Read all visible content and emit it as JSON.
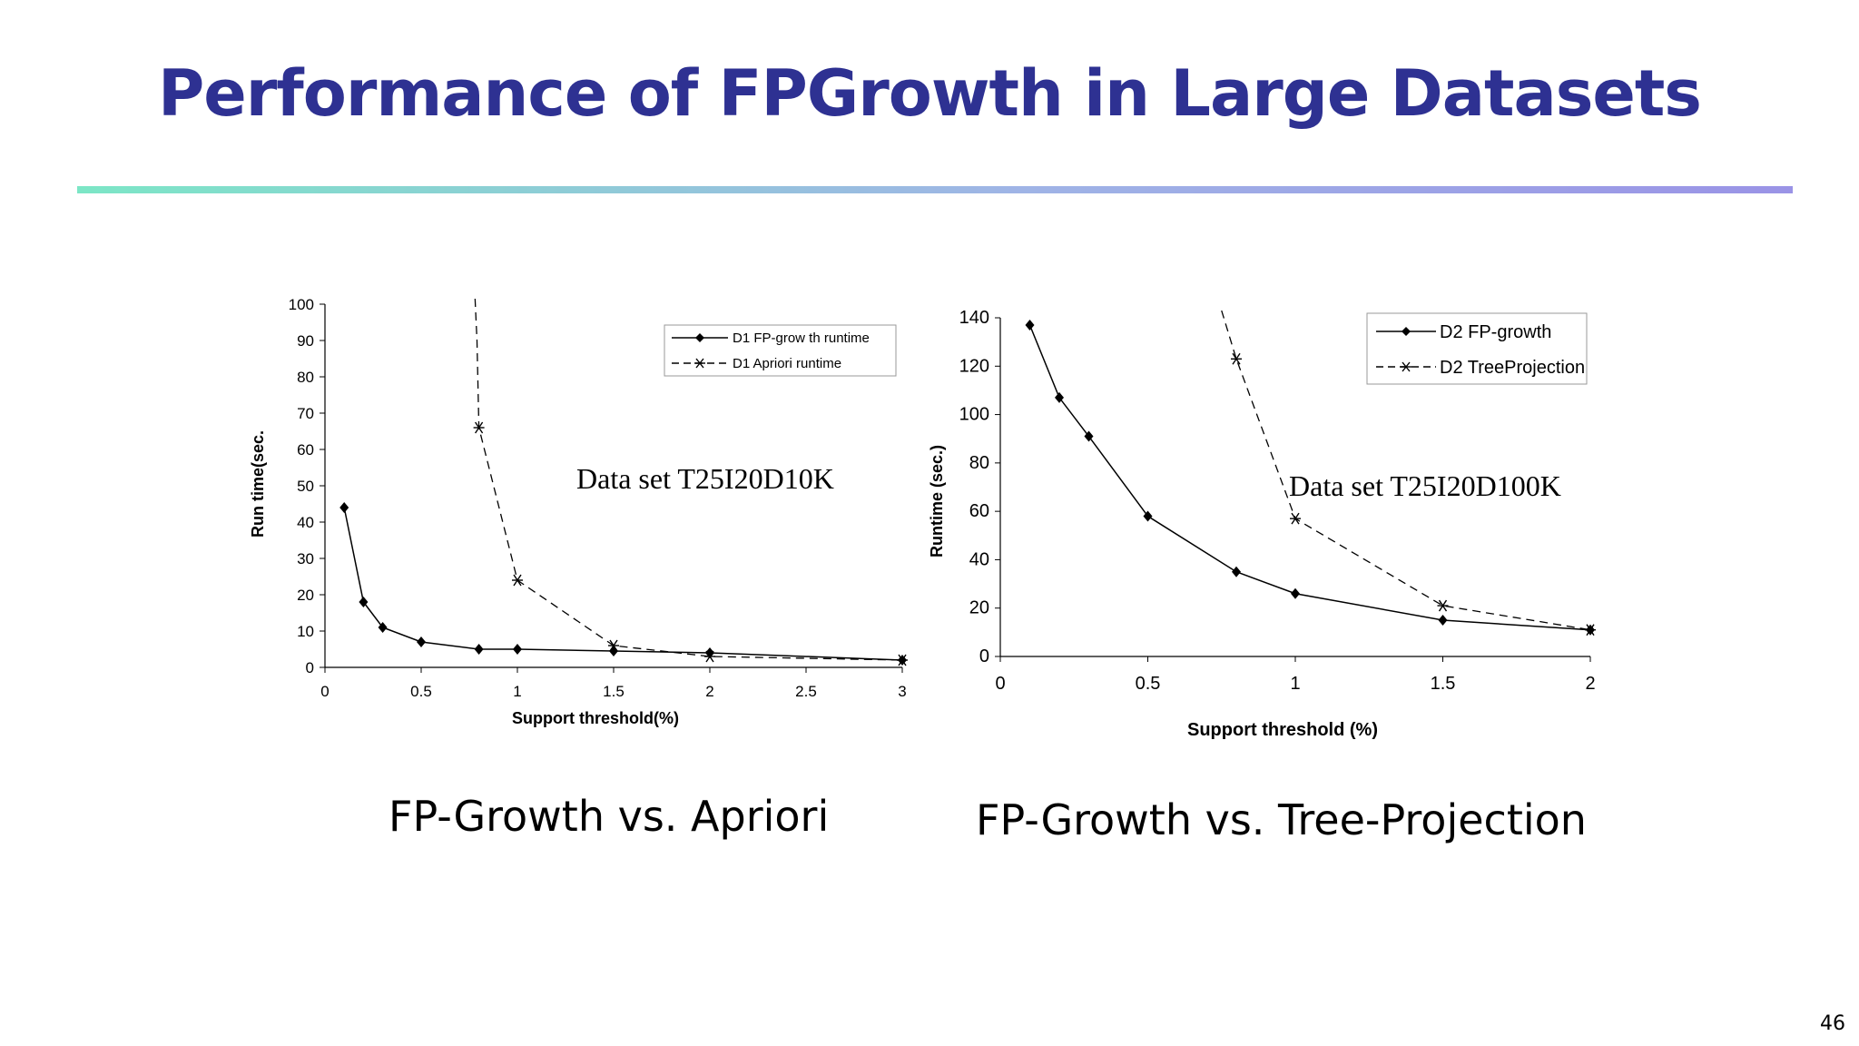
{
  "slide": {
    "title": "Performance of FPGrowth in Large Datasets",
    "page_number": "46",
    "accent_color": "#2e3192"
  },
  "captions": {
    "left": "FP-Growth vs. Apriori",
    "right": "FP-Growth vs. Tree-Projection"
  },
  "chart_data": [
    {
      "type": "line",
      "annotation": "Data set T25I20D10K",
      "xlabel": "Support threshold(%)",
      "ylabel": "Run time(sec.",
      "xlim": [
        0,
        3
      ],
      "ylim": [
        0,
        100
      ],
      "xticks": [
        "0",
        "0.5",
        "1",
        "1.5",
        "2",
        "2.5",
        "3"
      ],
      "yticks": [
        "0",
        "10",
        "20",
        "30",
        "40",
        "50",
        "60",
        "70",
        "80",
        "90",
        "100"
      ],
      "grid": false,
      "legend_position": "top-right",
      "series": [
        {
          "name": "D1 FP-grow th runtime",
          "style": "solid",
          "marker": "diamond",
          "x": [
            0.1,
            0.2,
            0.3,
            0.5,
            0.8,
            1,
            1.5,
            2,
            3
          ],
          "y": [
            44,
            18,
            11,
            7,
            5,
            5,
            4.5,
            4,
            2
          ]
        },
        {
          "name": "D1 Apriori runtime",
          "style": "dashed",
          "marker": "asterisk",
          "x": [
            0.8,
            1,
            1.5,
            2,
            3
          ],
          "y": [
            66,
            24,
            6,
            3,
            2
          ],
          "marked": [
            true,
            true,
            true,
            true,
            true
          ],
          "offscale_from_x": 0.78
        }
      ]
    },
    {
      "type": "line",
      "annotation": "Data set T25I20D100K",
      "xlabel": "Support threshold (%)",
      "ylabel": "Runtime (sec.)",
      "xlim": [
        0,
        2
      ],
      "ylim": [
        0,
        140
      ],
      "xticks": [
        "0",
        "0.5",
        "1",
        "1.5",
        "2"
      ],
      "yticks": [
        "0",
        "20",
        "40",
        "60",
        "80",
        "100",
        "120",
        "140"
      ],
      "grid": false,
      "legend_position": "top-right",
      "series": [
        {
          "name": "D2 FP-growth",
          "style": "solid",
          "marker": "diamond",
          "x": [
            0.1,
            0.2,
            0.3,
            0.5,
            0.8,
            1,
            1.5,
            2
          ],
          "y": [
            137,
            107,
            91,
            58,
            35,
            26,
            15,
            11
          ]
        },
        {
          "name": "D2 TreeProjection",
          "style": "dashed",
          "marker": "asterisk",
          "x": [
            0.75,
            0.8,
            1,
            1.5,
            2
          ],
          "y": [
            143,
            123,
            57,
            21,
            11
          ],
          "marked": [
            false,
            true,
            true,
            true,
            true
          ]
        }
      ]
    }
  ]
}
